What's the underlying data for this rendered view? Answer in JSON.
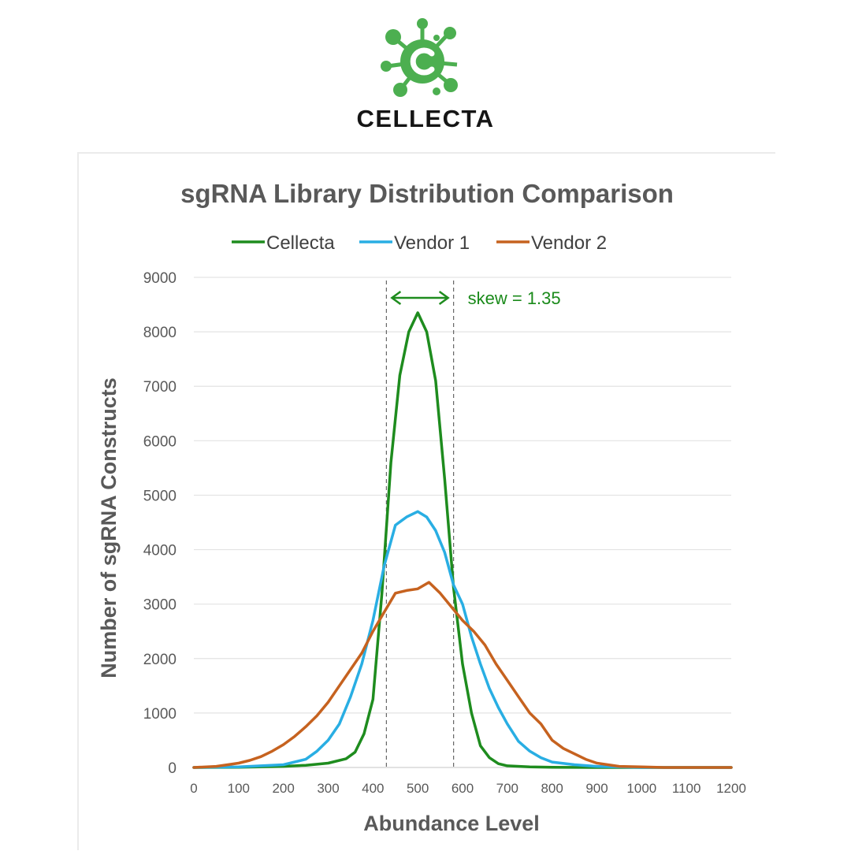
{
  "brand": {
    "name": "CELLECTA",
    "color": "#4caf50"
  },
  "chart_data": {
    "type": "line",
    "title": "sgRNA Library Distribution Comparison",
    "xlabel": "Abundance Level",
    "ylabel": "Number of sgRNA Constructs",
    "xlim": [
      0,
      1200
    ],
    "ylim": [
      0,
      9000
    ],
    "xticks": [
      0,
      100,
      200,
      300,
      400,
      500,
      600,
      700,
      800,
      900,
      1000,
      1100,
      1200
    ],
    "yticks": [
      0,
      1000,
      2000,
      3000,
      4000,
      5000,
      6000,
      7000,
      8000,
      9000
    ],
    "grid": "horizontal",
    "legend_position": "top",
    "series": [
      {
        "name": "Cellecta",
        "color": "#1e8c1e",
        "x": [
          0,
          100,
          200,
          250,
          300,
          340,
          360,
          380,
          400,
          420,
          440,
          460,
          480,
          500,
          520,
          540,
          560,
          580,
          600,
          620,
          640,
          660,
          680,
          700,
          750,
          800,
          900,
          1000,
          1200
        ],
        "y": [
          0,
          5,
          20,
          40,
          80,
          160,
          280,
          620,
          1250,
          3200,
          5600,
          7200,
          8000,
          8350,
          8000,
          7100,
          5300,
          3300,
          1900,
          1000,
          400,
          180,
          70,
          30,
          10,
          5,
          0,
          0,
          0
        ]
      },
      {
        "name": "Vendor 1",
        "color": "#29aee3",
        "x": [
          0,
          100,
          150,
          200,
          250,
          275,
          300,
          325,
          350,
          375,
          400,
          425,
          450,
          475,
          500,
          520,
          540,
          560,
          580,
          600,
          620,
          640,
          660,
          680,
          700,
          725,
          750,
          775,
          800,
          850,
          900,
          1000,
          1200
        ],
        "y": [
          0,
          10,
          30,
          50,
          150,
          300,
          500,
          800,
          1300,
          1900,
          2700,
          3700,
          4450,
          4600,
          4700,
          4600,
          4350,
          3950,
          3350,
          3000,
          2400,
          1900,
          1450,
          1100,
          800,
          480,
          300,
          180,
          100,
          50,
          20,
          0,
          0
        ]
      },
      {
        "name": "Vendor 2",
        "color": "#c6621f",
        "x": [
          0,
          50,
          100,
          125,
          150,
          175,
          200,
          225,
          250,
          275,
          300,
          325,
          350,
          375,
          400,
          425,
          450,
          475,
          500,
          525,
          550,
          575,
          600,
          625,
          650,
          675,
          700,
          725,
          750,
          775,
          800,
          825,
          850,
          875,
          900,
          950,
          1000,
          1050,
          1100,
          1200
        ],
        "y": [
          0,
          20,
          80,
          130,
          200,
          300,
          420,
          570,
          750,
          950,
          1200,
          1500,
          1800,
          2100,
          2500,
          2850,
          3200,
          3250,
          3280,
          3400,
          3200,
          2950,
          2700,
          2500,
          2250,
          1900,
          1600,
          1300,
          1000,
          800,
          500,
          350,
          250,
          150,
          80,
          20,
          10,
          0,
          0,
          0
        ]
      }
    ],
    "annotations": [
      {
        "text": "skew = 1.35",
        "x_from": 430,
        "x_to": 580,
        "color": "#1e8c1e",
        "dashed_lines_at": [
          430,
          580
        ]
      }
    ]
  }
}
